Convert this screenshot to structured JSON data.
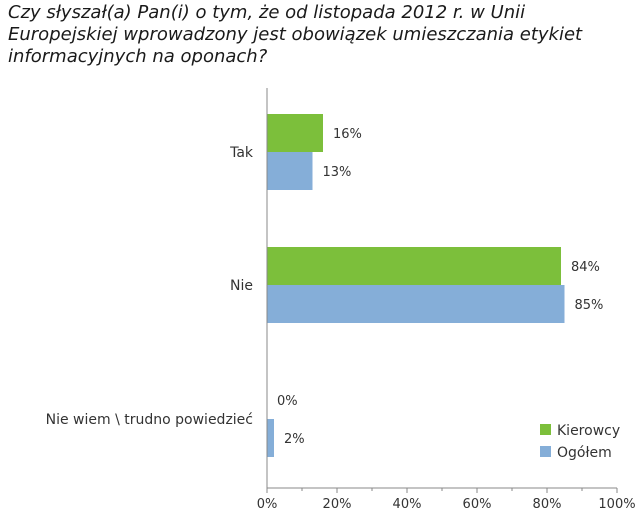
{
  "chart_data": {
    "type": "bar",
    "orientation": "horizontal",
    "title": "Czy słyszał(a) Pan(i) o tym, że od listopada 2012 r. w Unii Europejskiej wprowadzony jest obowiązek umieszczania etykiet informacyjnych na oponach?",
    "categories": [
      "Tak",
      "Nie",
      "Nie wiem \\ trudno powiedzieć"
    ],
    "series": [
      {
        "name": "Kierowcy",
        "color": "#7cbf3b",
        "values": [
          16,
          84,
          0
        ],
        "labels": [
          "16%",
          "84%",
          "0%"
        ]
      },
      {
        "name": "Ogółem",
        "color": "#85aed8",
        "values": [
          13,
          85,
          2
        ],
        "labels": [
          "13%",
          "85%",
          "2%"
        ]
      }
    ],
    "xlim": [
      0,
      100
    ],
    "x_ticks": [
      0,
      20,
      40,
      60,
      80,
      100
    ],
    "x_tick_labels": [
      "0%",
      "20%",
      "40%",
      "60%",
      "80%",
      "100%"
    ],
    "xlabel": "",
    "ylabel": "",
    "legend_position": "bottom-right"
  }
}
